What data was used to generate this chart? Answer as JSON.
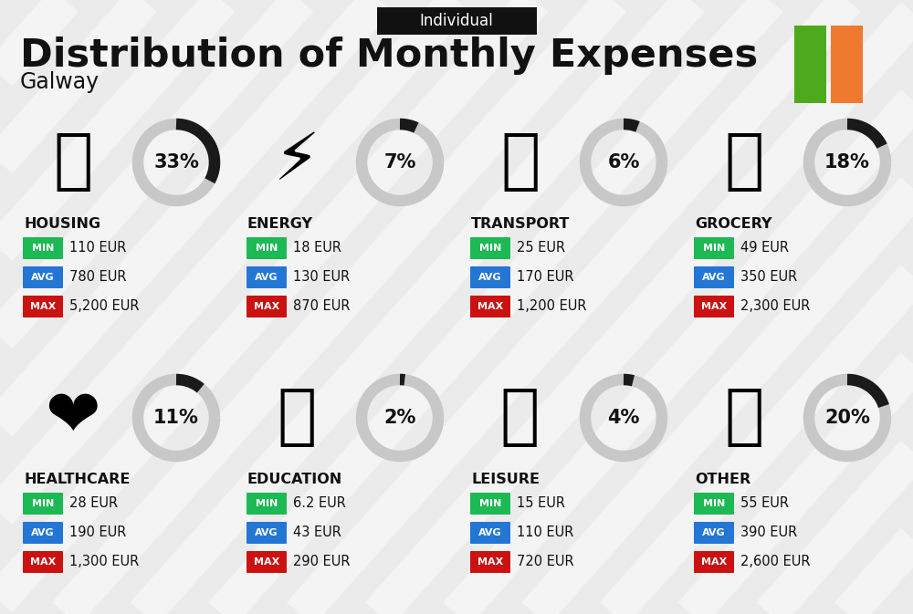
{
  "title": "Distribution of Monthly Expenses",
  "subtitle": "Individual",
  "city": "Galway",
  "bg_color": "#ebebeb",
  "flag_green": "#4daa1e",
  "flag_white": "#ffffff",
  "flag_orange": "#f07930",
  "categories": [
    {
      "name": "HOUSING",
      "pct": 33,
      "min": "110 EUR",
      "avg": "780 EUR",
      "max": "5,200 EUR",
      "col": 0,
      "row": 0
    },
    {
      "name": "ENERGY",
      "pct": 7,
      "min": "18 EUR",
      "avg": "130 EUR",
      "max": "870 EUR",
      "col": 1,
      "row": 0
    },
    {
      "name": "TRANSPORT",
      "pct": 6,
      "min": "25 EUR",
      "avg": "170 EUR",
      "max": "1,200 EUR",
      "col": 2,
      "row": 0
    },
    {
      "name": "GROCERY",
      "pct": 18,
      "min": "49 EUR",
      "avg": "350 EUR",
      "max": "2,300 EUR",
      "col": 3,
      "row": 0
    },
    {
      "name": "HEALTHCARE",
      "pct": 11,
      "min": "28 EUR",
      "avg": "190 EUR",
      "max": "1,300 EUR",
      "col": 0,
      "row": 1
    },
    {
      "name": "EDUCATION",
      "pct": 2,
      "min": "6.2 EUR",
      "avg": "43 EUR",
      "max": "290 EUR",
      "col": 1,
      "row": 1
    },
    {
      "name": "LEISURE",
      "pct": 4,
      "min": "15 EUR",
      "avg": "110 EUR",
      "max": "720 EUR",
      "col": 2,
      "row": 1
    },
    {
      "name": "OTHER",
      "pct": 20,
      "min": "55 EUR",
      "avg": "390 EUR",
      "max": "2,600 EUR",
      "col": 3,
      "row": 1
    }
  ],
  "min_color": "#1db954",
  "avg_color": "#2476d4",
  "max_color": "#cc1111",
  "text_color": "#111111",
  "ring_bg": "#c8c8c8",
  "ring_fg": "#1a1a1a",
  "stripe_color": "#ffffff",
  "stripe_alpha": 0.45
}
